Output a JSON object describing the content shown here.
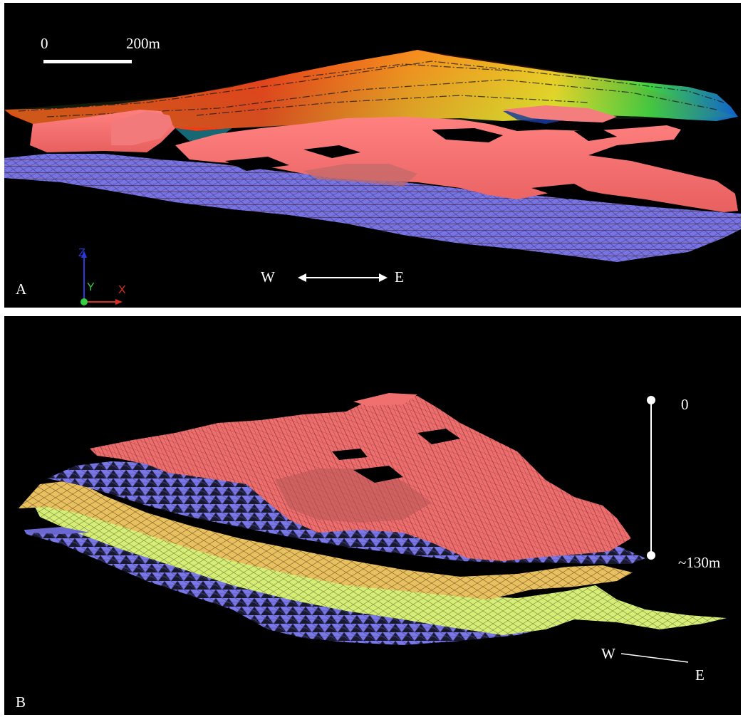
{
  "panel_a": {
    "label": "A",
    "scale_start": "0",
    "scale_end": "200m",
    "dir_west": "W",
    "dir_east": "E",
    "axis_z": "Z",
    "axis_y": "Y",
    "axis_x": "X"
  },
  "panel_b": {
    "label": "B",
    "depth_top": "0",
    "depth_bottom": "~130m",
    "dir_west": "W",
    "dir_east": "E"
  },
  "colors": {
    "background": "#000000",
    "pink_surface": "#f07070",
    "blue_mesh": "#7a78e6",
    "gold_layer": "#e8c060",
    "lime_layer": "#d6ee78",
    "annotation": "#ffffff"
  }
}
